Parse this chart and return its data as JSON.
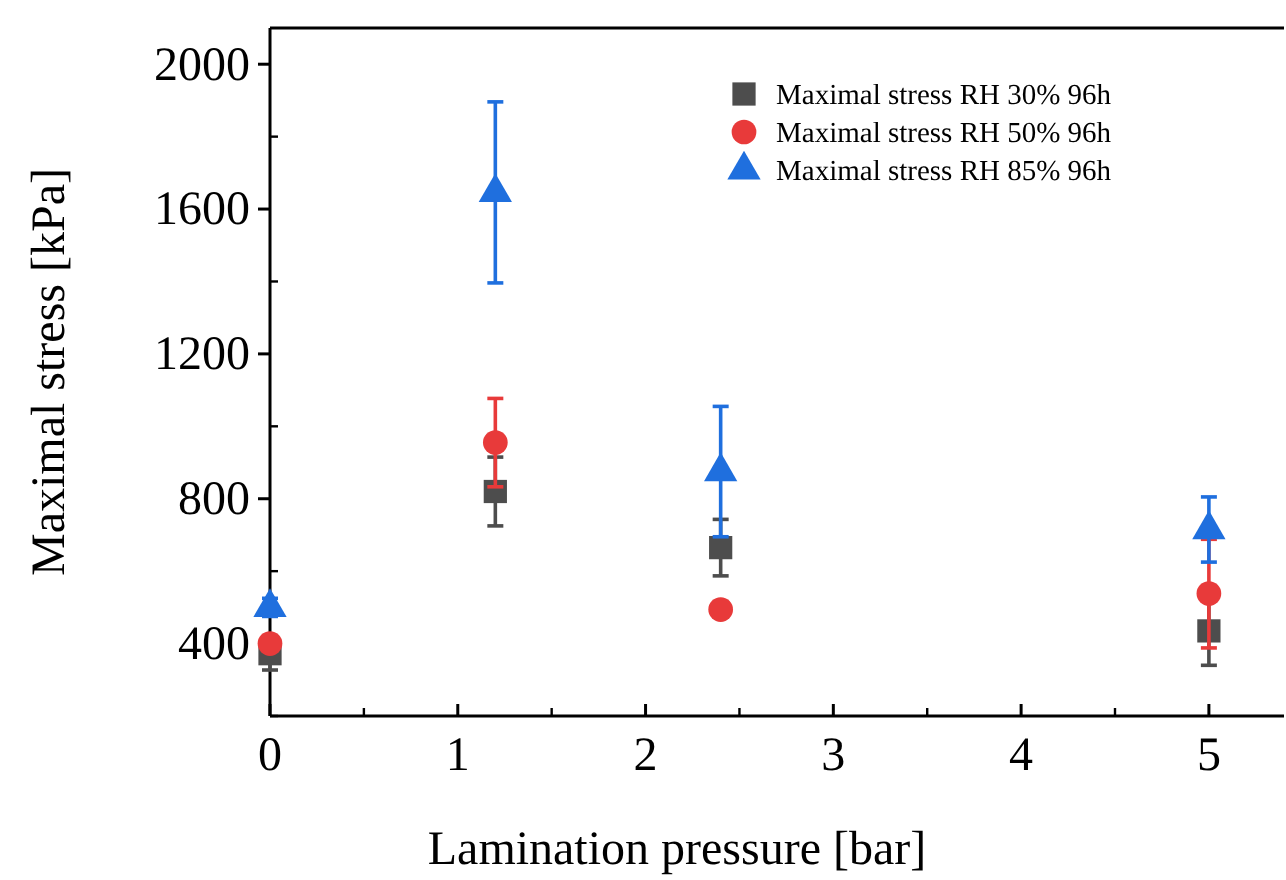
{
  "chart_data": {
    "type": "scatter",
    "xlabel": "Lamination pressure [bar]",
    "ylabel": "Maximal stress [kPa]",
    "x": [
      0,
      1.2,
      2.4,
      5
    ],
    "xlim": [
      0,
      5.4
    ],
    "xticks": [
      0,
      1,
      2,
      3,
      4,
      5
    ],
    "ylim": [
      200,
      2100
    ],
    "yticks": [
      400,
      800,
      1200,
      1600,
      2000
    ],
    "legend": "top right",
    "grid": false,
    "series": [
      {
        "name": "Maximal stress RH 30% 96h",
        "color": "#4d4d4d",
        "marker": "square",
        "values": [
          372,
          820,
          665,
          435
        ],
        "errors": [
          45,
          95,
          78,
          95
        ]
      },
      {
        "name": "Maximal stress RH 50% 96h",
        "color": "#e83a3a",
        "marker": "circle",
        "values": [
          400,
          955,
          494,
          538
        ],
        "errors": [
          20,
          122,
          20,
          150
        ]
      },
      {
        "name": "Maximal stress RH 85% 96h",
        "color": "#1f6fde",
        "marker": "triangle",
        "values": [
          500,
          1646,
          875,
          715
        ],
        "errors": [
          25,
          250,
          180,
          90
        ]
      }
    ]
  }
}
